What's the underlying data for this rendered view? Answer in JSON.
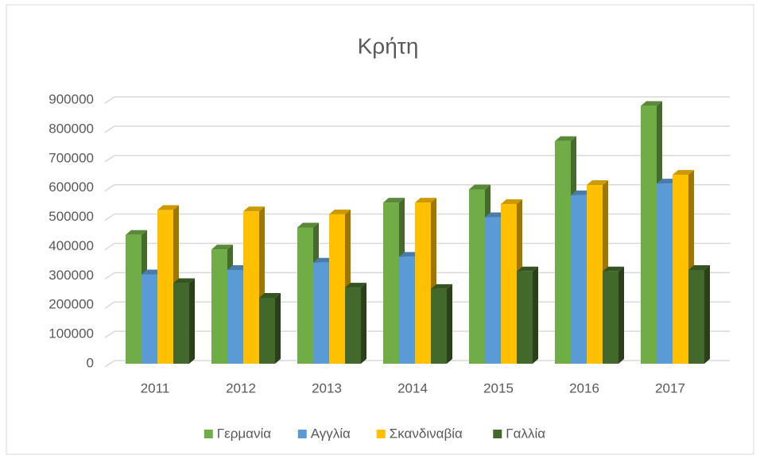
{
  "chart_data": {
    "type": "bar3d",
    "title": "Κρήτη",
    "categories": [
      "2011",
      "2012",
      "2013",
      "2014",
      "2015",
      "2016",
      "2017"
    ],
    "series": [
      {
        "name": "Γερμανία",
        "color": "#70ad47",
        "values": [
          440000,
          390000,
          465000,
          550000,
          595000,
          760000,
          880000
        ]
      },
      {
        "name": "Αγγλία",
        "color": "#5b9bd5",
        "values": [
          305000,
          320000,
          345000,
          365000,
          500000,
          575000,
          615000
        ]
      },
      {
        "name": "Σκανδιναβία",
        "color": "#ffc000",
        "values": [
          525000,
          520000,
          510000,
          550000,
          545000,
          610000,
          645000
        ]
      },
      {
        "name": "Γαλλία",
        "color": "#43682b",
        "values": [
          275000,
          225000,
          260000,
          255000,
          315000,
          315000,
          320000
        ]
      }
    ],
    "ylim": [
      0,
      900000
    ],
    "yticks": [
      0,
      100000,
      200000,
      300000,
      400000,
      500000,
      600000,
      700000,
      800000,
      900000
    ],
    "grid": true,
    "legend": "bottom"
  }
}
